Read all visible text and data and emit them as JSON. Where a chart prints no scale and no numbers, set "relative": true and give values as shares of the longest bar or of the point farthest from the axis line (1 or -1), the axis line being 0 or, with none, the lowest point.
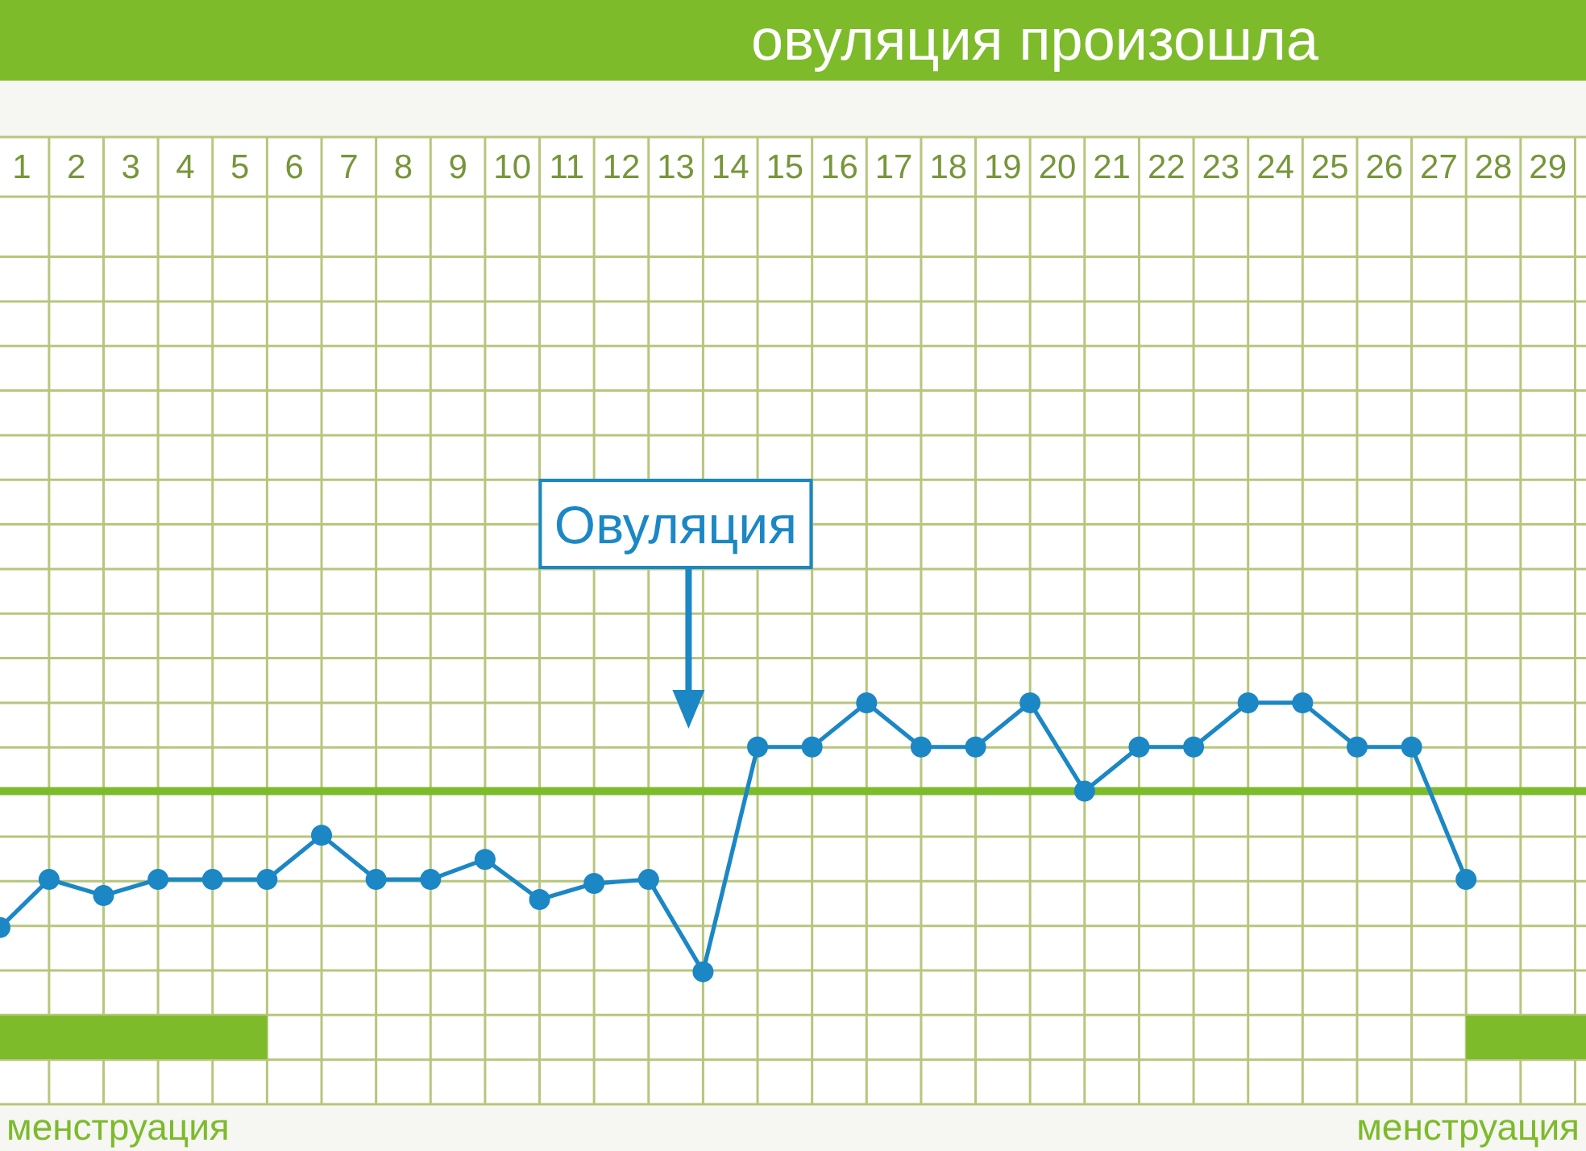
{
  "chart_data": {
    "type": "line",
    "title": "овуляция произошла",
    "x": [
      0.6,
      1.5,
      2.5,
      3.5,
      4.5,
      5.5,
      6.5,
      7.5,
      8.5,
      9.5,
      10.5,
      11.5,
      12.5,
      13.5,
      14.5,
      15.5,
      16.5,
      17.5,
      18.5,
      19.5,
      20.5,
      21.5,
      22.5,
      23.5,
      24.5,
      25.5,
      26.5,
      27.5
    ],
    "series": [
      {
        "color": "#1b87c5",
        "values": [
          0.44,
          0.56,
          0.52,
          0.56,
          0.56,
          0.56,
          0.67,
          0.56,
          0.56,
          0.61,
          0.51,
          0.55,
          0.56,
          0.33,
          0.89,
          0.89,
          1,
          0.89,
          0.89,
          1,
          0.78,
          0.89,
          0.89,
          1,
          1,
          0.89,
          0.89,
          0.56
        ]
      }
    ],
    "relative": true,
    "xlim": [
      0.6,
      29.7
    ],
    "xticks": [
      1,
      {
        "value": 1.5,
        "label": null
      },
      2,
      {
        "value": 2.5,
        "label": null
      },
      3,
      {
        "value": 3.5,
        "label": null
      },
      4,
      {
        "value": 4.5,
        "label": null
      },
      5,
      {
        "value": 5.5,
        "label": null
      },
      6,
      {
        "value": 6.5,
        "label": null
      },
      7,
      {
        "value": 7.5,
        "label": null
      },
      8,
      {
        "value": 8.5,
        "label": null
      },
      9,
      {
        "value": 9.5,
        "label": null
      },
      10,
      {
        "value": 10.5,
        "label": null
      },
      11,
      {
        "value": 11.5,
        "label": null
      },
      12,
      {
        "value": 12.5,
        "label": null
      },
      13,
      {
        "value": 13.5,
        "label": null
      },
      14,
      {
        "value": 14.5,
        "label": null
      },
      15,
      {
        "value": 15.5,
        "label": null
      },
      16,
      {
        "value": 16.5,
        "label": null
      },
      17,
      {
        "value": 17.5,
        "label": null
      },
      18,
      {
        "value": 18.5,
        "label": null
      },
      19,
      {
        "value": 19.5,
        "label": null
      },
      20,
      {
        "value": 20.5,
        "label": null
      },
      21,
      {
        "value": 21.5,
        "label": null
      },
      22,
      {
        "value": 22.5,
        "label": null
      },
      23,
      {
        "value": 23.5,
        "label": null
      },
      24,
      {
        "value": 24.5,
        "label": null
      },
      25,
      {
        "value": 25.5,
        "label": null
      },
      26,
      {
        "value": 26.5,
        "label": null
      },
      27,
      {
        "value": 27.5,
        "label": null
      },
      28,
      {
        "value": 28.5,
        "label": null
      },
      29,
      {
        "value": 29.5,
        "label": null
      }
    ],
    "grid": true,
    "marker": "circle",
    "line_style": "solid",
    "ref_lines": [
      {
        "axis": "y",
        "value": 0.78,
        "color": "#7dbb2b"
      }
    ],
    "bands": [
      {
        "axis": "x",
        "from": 0.6,
        "to": 5.5,
        "label": "менструация",
        "color": "#7dbb2b"
      },
      {
        "axis": "x",
        "from": 27.5,
        "to": 29.7,
        "label": "менструация",
        "color": "#7dbb2b"
      }
    ],
    "annotations": [
      "Овуляция"
    ]
  }
}
